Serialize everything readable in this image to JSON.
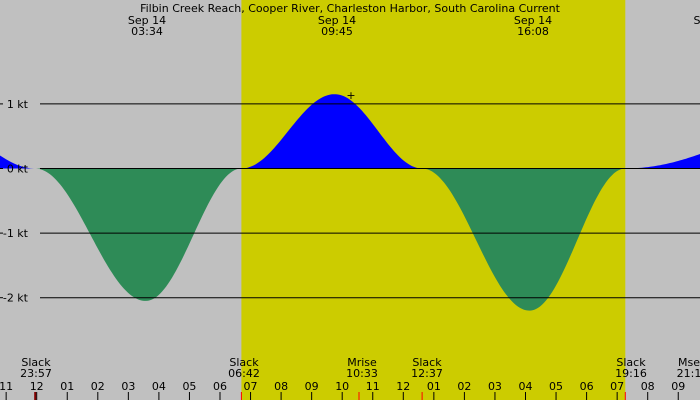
{
  "chart_data": {
    "type": "area",
    "title": "Filbin Creek Reach, Cooper River, Charleston Harbor, South Carolina Current",
    "xlabel": "",
    "ylabel": "",
    "ylim": [
      -2.5,
      2.0
    ],
    "grid": true,
    "series": [
      {
        "name": "",
        "x": [
          "23:57",
          "03:34",
          "06:42",
          "09:45",
          "12:37",
          "16:08",
          "19:16"
        ],
        "values": [
          0,
          -2.05,
          0,
          1.15,
          0,
          -2.2,
          0
        ]
      }
    ],
    "y_ticks": [
      {
        "v": 1,
        "label": "1 kt"
      },
      {
        "v": 0,
        "label": "0 kt"
      },
      {
        "v": -1,
        "label": "-1 kt"
      },
      {
        "v": -2,
        "label": "-2 kt"
      }
    ],
    "x_ticks": [
      "11",
      "12",
      "01",
      "02",
      "03",
      "04",
      "05",
      "06",
      "07",
      "08",
      "09",
      "10",
      "11",
      "12",
      "01",
      "02",
      "03",
      "04",
      "05",
      "06",
      "07",
      "08",
      "09"
    ],
    "top_labels": [
      {
        "date": "Sep 14",
        "time": "03:34"
      },
      {
        "date": "Sep 14",
        "time": "09:45"
      },
      {
        "date": "Sep 14",
        "time": "16:08"
      },
      {
        "date": "S",
        "time": ""
      }
    ],
    "bottom_events": [
      {
        "label": "Slack",
        "time": "23:57"
      },
      {
        "label": "Slack",
        "time": "06:42"
      },
      {
        "label": "Mrise",
        "time": "10:33"
      },
      {
        "label": "Slack",
        "time": "12:37"
      },
      {
        "label": "Slack",
        "time": "19:16"
      },
      {
        "label": "Mse",
        "time": "21:1"
      }
    ],
    "daylight": [
      "06:42",
      "19:16"
    ],
    "colors": {
      "background": "#c0c0c0",
      "daylight": "#cccc00",
      "flood": "#0000ff",
      "ebb": "#2e8b57"
    }
  }
}
